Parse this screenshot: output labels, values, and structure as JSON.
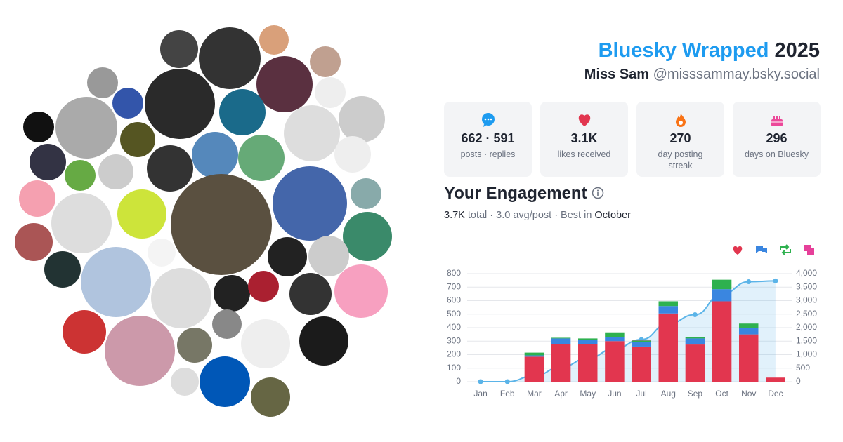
{
  "header": {
    "title": "Bluesky Wrapped",
    "year": "2025",
    "name": "Miss Sam",
    "handle": "@misssammay.bsky.social"
  },
  "stats": [
    {
      "value": "662 · 591",
      "label": "posts · replies"
    },
    {
      "value": "3.1K",
      "label": "likes received"
    },
    {
      "value": "270",
      "label": "day posting streak"
    },
    {
      "value": "296",
      "label": "days on Bluesky"
    }
  ],
  "engagement": {
    "title": "Your Engagement",
    "total": "3.7K",
    "summary": "total · 3.0 avg/post · Best in",
    "best": "October"
  },
  "chart_data": {
    "type": "bar",
    "stacked": true,
    "grid": true,
    "categories": [
      "Jan",
      "Feb",
      "Mar",
      "Apr",
      "May",
      "Jun",
      "Jul",
      "Aug",
      "Sep",
      "Oct",
      "Nov",
      "Dec"
    ],
    "series": [
      {
        "color": "#e2364f",
        "values": [
          0,
          0,
          185,
          280,
          280,
          300,
          260,
          505,
          275,
          595,
          350,
          30
        ]
      },
      {
        "color": "#3a86e0",
        "values": [
          0,
          0,
          10,
          40,
          30,
          30,
          35,
          55,
          45,
          90,
          50,
          0
        ]
      },
      {
        "color": "#2eb14f",
        "values": [
          0,
          0,
          20,
          5,
          10,
          35,
          10,
          35,
          10,
          70,
          30,
          0
        ]
      },
      {
        "color": "#e6409a",
        "values": [
          0,
          0,
          0,
          0,
          0,
          0,
          3,
          0,
          0,
          0,
          0,
          0
        ]
      },
      {
        "type": "line",
        "axis": "y2",
        "color": "#5bb4e8",
        "values": [
          0,
          0,
          215,
          540,
          860,
          1225,
          1560,
          2150,
          2480,
          3240,
          3700,
          3730
        ]
      }
    ],
    "ylim": [
      0,
      800
    ],
    "yticks": [
      0,
      100,
      200,
      300,
      400,
      500,
      600,
      700,
      800
    ],
    "y2lim": [
      0,
      4000
    ],
    "y2ticks": [
      0,
      500,
      {
        "value": 1000,
        "label": "1,000"
      },
      {
        "value": 1500,
        "label": "1,500"
      },
      {
        "value": 2000,
        "label": "2,000"
      },
      {
        "value": 2500,
        "label": "2,500"
      },
      {
        "value": 3000,
        "label": "3,000"
      },
      {
        "value": 3500,
        "label": "3,500"
      },
      {
        "value": 4000,
        "label": "4,000"
      }
    ]
  }
}
